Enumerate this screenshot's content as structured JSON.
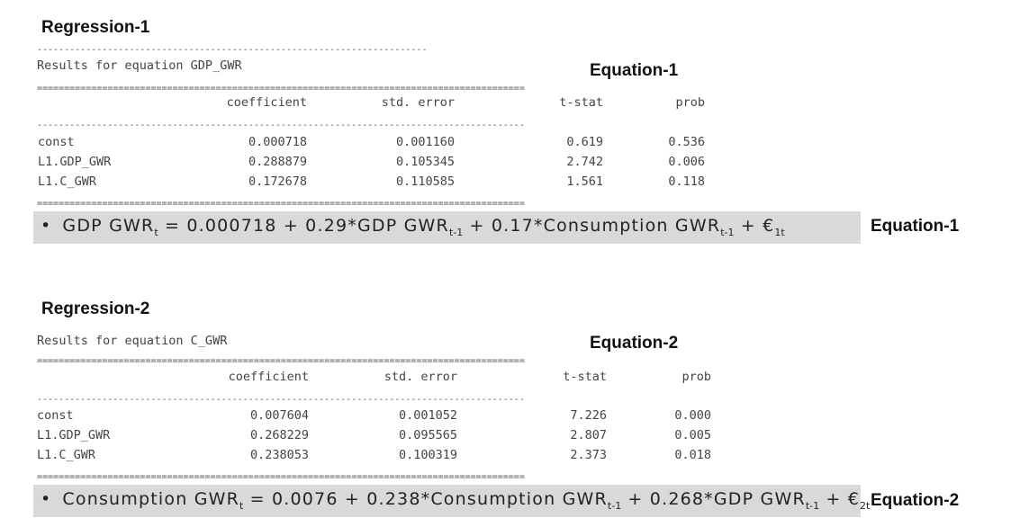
{
  "regression1": {
    "title": "Regression-1",
    "top_rule": "------------------------------------------------------------------------",
    "results_label": "Results for equation GDP_GWR",
    "equation_tag": "Equation-1",
    "double_rule": "==========================================================================================",
    "dash_rule": "------------------------------------------------------------------------------------------",
    "headers": [
      "coefficient",
      "std. error",
      "t-stat",
      "prob"
    ],
    "rows": [
      {
        "name": "const",
        "coef": "0.000718",
        "se": "0.001160",
        "t": "0.619",
        "p": "0.536"
      },
      {
        "name": "L1.GDP_GWR",
        "coef": "0.288879",
        "se": "0.105345",
        "t": "2.742",
        "p": "0.006"
      },
      {
        "name": "L1.C_GWR",
        "coef": "0.172678",
        "se": "0.110585",
        "t": "1.561",
        "p": "0.118"
      }
    ],
    "equation": {
      "bullet": "•",
      "p1": "GDP GWR",
      "s1": "t",
      "p2": " = 0.000718 + 0.29*GDP GWR",
      "s2": "t-1",
      "p3": " + 0.17*Consumption GWR",
      "s3": "t-1",
      "p4": " + €",
      "s4": "1t"
    },
    "equation_side_tag": "Equation-1"
  },
  "regression2": {
    "title": "Regression-2",
    "results_label": "Results for equation C_GWR",
    "equation_tag": "Equation-2",
    "double_rule": "==========================================================================================",
    "dash_rule": "------------------------------------------------------------------------------------------",
    "headers": [
      "coefficient",
      "std. error",
      "t-stat",
      "prob"
    ],
    "rows": [
      {
        "name": "const",
        "coef": "0.007604",
        "se": "0.001052",
        "t": "7.226",
        "p": "0.000"
      },
      {
        "name": "L1.GDP_GWR",
        "coef": "0.268229",
        "se": "0.095565",
        "t": "2.807",
        "p": "0.005"
      },
      {
        "name": "L1.C_GWR",
        "coef": "0.238053",
        "se": "0.100319",
        "t": "2.373",
        "p": "0.018"
      }
    ],
    "equation": {
      "bullet": "•",
      "p1": "Consumption GWR",
      "s1": "t",
      "p2": " = 0.0076 + 0.238*Consumption GWR",
      "s2": "t-1",
      "p3": " + 0.268*GDP GWR",
      "s3": "t-1",
      "p4": " + €",
      "s4": "2t"
    },
    "equation_side_tag": "Equation-2"
  }
}
